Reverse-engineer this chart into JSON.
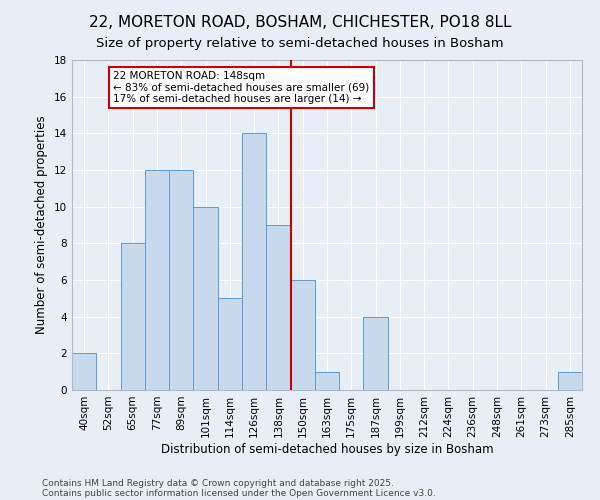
{
  "title": "22, MORETON ROAD, BOSHAM, CHICHESTER, PO18 8LL",
  "subtitle": "Size of property relative to semi-detached houses in Bosham",
  "xlabel": "Distribution of semi-detached houses by size in Bosham",
  "ylabel": "Number of semi-detached properties",
  "categories": [
    "40sqm",
    "52sqm",
    "65sqm",
    "77sqm",
    "89sqm",
    "101sqm",
    "114sqm",
    "126sqm",
    "138sqm",
    "150sqm",
    "163sqm",
    "175sqm",
    "187sqm",
    "199sqm",
    "212sqm",
    "224sqm",
    "236sqm",
    "248sqm",
    "261sqm",
    "273sqm",
    "285sqm"
  ],
  "values": [
    2,
    0,
    8,
    12,
    12,
    10,
    5,
    14,
    9,
    6,
    1,
    0,
    4,
    0,
    0,
    0,
    0,
    0,
    0,
    0,
    1
  ],
  "bar_color": "#c8d9ed",
  "bar_edge_color": "#5b9bd5",
  "background_color": "#e8eef5",
  "grid_color": "#ffffff",
  "vline_x_index": 8.5,
  "vline_color": "#cc0000",
  "annotation_title": "22 MORETON ROAD: 148sqm",
  "annotation_line1": "← 83% of semi-detached houses are smaller (69)",
  "annotation_line2": "17% of semi-detached houses are larger (14) →",
  "annotation_box_color": "#cc0000",
  "ylim": [
    0,
    18
  ],
  "yticks": [
    0,
    2,
    4,
    6,
    8,
    10,
    12,
    14,
    16,
    18
  ],
  "footnote1": "Contains HM Land Registry data © Crown copyright and database right 2025.",
  "footnote2": "Contains public sector information licensed under the Open Government Licence v3.0.",
  "title_fontsize": 11,
  "subtitle_fontsize": 9.5,
  "tick_fontsize": 7.5,
  "ylabel_fontsize": 8.5,
  "xlabel_fontsize": 8.5,
  "footnote_fontsize": 6.5,
  "annot_fontsize": 7.5
}
